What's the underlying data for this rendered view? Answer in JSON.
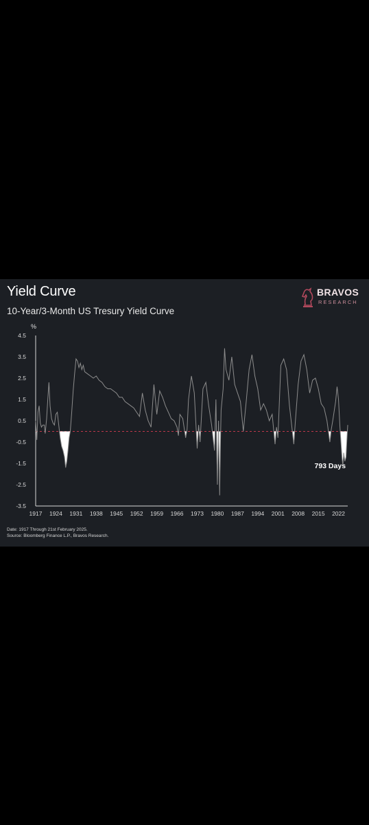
{
  "header": {
    "title": "Yield Curve",
    "subtitle": "10-Year/3-Month US Tresury Yield Curve"
  },
  "brand": {
    "name": "BRAVOS",
    "sub": "RESEARCH",
    "color": "#b0485c"
  },
  "footer": {
    "date_note": "Date: 1917 Through 21st February 2025.",
    "source_note": "Source: Bloomberg Finance L.P., Bravos Research."
  },
  "colors": {
    "background": "#1c1f24",
    "line": "#8d8d8d",
    "inversion": "#ffffff",
    "zero_line": "#c0394b",
    "axis": "#d9d9d9"
  },
  "chart_data": {
    "type": "line",
    "ylabel": "%",
    "xlim": [
      1917,
      2025.2
    ],
    "ylim": [
      -3.5,
      4.5
    ],
    "y_ticks": [
      4.5,
      3.5,
      2.5,
      1.5,
      0.5,
      -0.5,
      -1.5,
      -2.5,
      -3.5
    ],
    "x_ticks": [
      1917,
      1924,
      1931,
      1938,
      1945,
      1952,
      1959,
      1966,
      1973,
      1980,
      1987,
      1994,
      2001,
      2008,
      2015,
      2022
    ],
    "reference_line": {
      "y": 0,
      "style": "dashed"
    },
    "annotation": {
      "text": "793 Days",
      "x": 2024.5,
      "y": -1.6
    },
    "series": [
      {
        "points": [
          [
            1917.0,
            0.5
          ],
          [
            1917.4,
            -0.4
          ],
          [
            1917.8,
            0.9
          ],
          [
            1918.2,
            1.2
          ],
          [
            1918.6,
            0.4
          ],
          [
            1919.0,
            0.2
          ],
          [
            1919.5,
            0.3
          ],
          [
            1920.0,
            0.3
          ],
          [
            1920.3,
            -0.1
          ],
          [
            1920.8,
            0.6
          ],
          [
            1921.2,
            1.5
          ],
          [
            1921.6,
            2.3
          ],
          [
            1922.0,
            1.2
          ],
          [
            1922.5,
            0.6
          ],
          [
            1923.0,
            0.4
          ],
          [
            1923.5,
            0.3
          ],
          [
            1924.0,
            0.8
          ],
          [
            1924.5,
            0.9
          ],
          [
            1925.0,
            0.3
          ],
          [
            1925.5,
            -0.3
          ],
          [
            1926.0,
            -0.7
          ],
          [
            1926.5,
            -0.9
          ],
          [
            1927.0,
            -1.2
          ],
          [
            1927.4,
            -1.7
          ],
          [
            1927.8,
            -1.4
          ],
          [
            1928.2,
            -0.9
          ],
          [
            1928.6,
            -0.3
          ],
          [
            1929.0,
            0.0
          ],
          [
            1929.5,
            0.9
          ],
          [
            1930.0,
            1.9
          ],
          [
            1930.5,
            2.7
          ],
          [
            1931.0,
            3.4
          ],
          [
            1931.5,
            3.3
          ],
          [
            1932.0,
            3.0
          ],
          [
            1932.5,
            3.2
          ],
          [
            1933.0,
            2.9
          ],
          [
            1933.5,
            3.1
          ],
          [
            1934.0,
            2.8
          ],
          [
            1935.0,
            2.7
          ],
          [
            1936.0,
            2.6
          ],
          [
            1937.0,
            2.5
          ],
          [
            1938.0,
            2.6
          ],
          [
            1939.0,
            2.4
          ],
          [
            1940.0,
            2.3
          ],
          [
            1941.0,
            2.1
          ],
          [
            1942.0,
            2.0
          ],
          [
            1943.0,
            2.0
          ],
          [
            1944.0,
            1.9
          ],
          [
            1945.0,
            1.8
          ],
          [
            1946.0,
            1.6
          ],
          [
            1947.0,
            1.6
          ],
          [
            1948.0,
            1.4
          ],
          [
            1949.0,
            1.3
          ],
          [
            1950.0,
            1.2
          ],
          [
            1951.0,
            1.1
          ],
          [
            1952.0,
            0.9
          ],
          [
            1953.0,
            0.7
          ],
          [
            1954.0,
            1.8
          ],
          [
            1955.0,
            1.0
          ],
          [
            1956.0,
            0.5
          ],
          [
            1957.0,
            0.2
          ],
          [
            1958.0,
            2.2
          ],
          [
            1958.5,
            1.5
          ],
          [
            1959.0,
            0.8
          ],
          [
            1960.0,
            1.9
          ],
          [
            1961.0,
            1.6
          ],
          [
            1962.0,
            1.2
          ],
          [
            1963.0,
            0.9
          ],
          [
            1964.0,
            0.6
          ],
          [
            1965.0,
            0.5
          ],
          [
            1966.0,
            0.2
          ],
          [
            1966.5,
            -0.2
          ],
          [
            1967.0,
            0.8
          ],
          [
            1968.0,
            0.6
          ],
          [
            1969.0,
            -0.3
          ],
          [
            1969.5,
            0.1
          ],
          [
            1970.0,
            1.5
          ],
          [
            1971.0,
            2.6
          ],
          [
            1972.0,
            1.8
          ],
          [
            1973.0,
            -0.8
          ],
          [
            1973.5,
            0.3
          ],
          [
            1974.0,
            -0.5
          ],
          [
            1975.0,
            2.0
          ],
          [
            1976.0,
            2.3
          ],
          [
            1977.0,
            1.2
          ],
          [
            1978.0,
            0.3
          ],
          [
            1979.0,
            -0.9
          ],
          [
            1979.5,
            1.5
          ],
          [
            1980.0,
            -2.5
          ],
          [
            1980.4,
            0.5
          ],
          [
            1980.8,
            -3.0
          ],
          [
            1981.0,
            -1.0
          ],
          [
            1981.3,
            1.0
          ],
          [
            1982.0,
            2.0
          ],
          [
            1982.5,
            3.9
          ],
          [
            1983.0,
            2.9
          ],
          [
            1984.0,
            2.4
          ],
          [
            1985.0,
            3.5
          ],
          [
            1986.0,
            2.2
          ],
          [
            1987.0,
            1.8
          ],
          [
            1988.0,
            1.4
          ],
          [
            1989.0,
            0.0
          ],
          [
            1990.0,
            1.4
          ],
          [
            1991.0,
            2.9
          ],
          [
            1992.0,
            3.6
          ],
          [
            1993.0,
            2.6
          ],
          [
            1994.0,
            2.0
          ],
          [
            1995.0,
            1.0
          ],
          [
            1996.0,
            1.3
          ],
          [
            1997.0,
            1.0
          ],
          [
            1998.0,
            0.5
          ],
          [
            1999.0,
            0.8
          ],
          [
            2000.0,
            -0.6
          ],
          [
            2000.5,
            0.2
          ],
          [
            2001.0,
            -0.3
          ],
          [
            2002.0,
            3.1
          ],
          [
            2003.0,
            3.4
          ],
          [
            2004.0,
            2.9
          ],
          [
            2005.0,
            1.2
          ],
          [
            2006.0,
            0.0
          ],
          [
            2006.5,
            -0.6
          ],
          [
            2007.0,
            0.4
          ],
          [
            2008.0,
            2.2
          ],
          [
            2009.0,
            3.3
          ],
          [
            2010.0,
            3.6
          ],
          [
            2011.0,
            2.9
          ],
          [
            2012.0,
            1.8
          ],
          [
            2013.0,
            2.4
          ],
          [
            2014.0,
            2.5
          ],
          [
            2015.0,
            2.0
          ],
          [
            2016.0,
            1.3
          ],
          [
            2017.0,
            1.1
          ],
          [
            2018.0,
            0.5
          ],
          [
            2019.0,
            -0.5
          ],
          [
            2019.5,
            0.1
          ],
          [
            2020.0,
            0.5
          ],
          [
            2021.0,
            1.4
          ],
          [
            2021.5,
            2.1
          ],
          [
            2022.0,
            1.5
          ],
          [
            2022.5,
            0.2
          ],
          [
            2022.9,
            -0.6
          ],
          [
            2023.2,
            -1.2
          ],
          [
            2023.5,
            -1.6
          ],
          [
            2023.8,
            -1.0
          ],
          [
            2024.2,
            -1.4
          ],
          [
            2024.6,
            -1.2
          ],
          [
            2024.9,
            -0.4
          ],
          [
            2025.2,
            0.3
          ]
        ]
      }
    ]
  }
}
